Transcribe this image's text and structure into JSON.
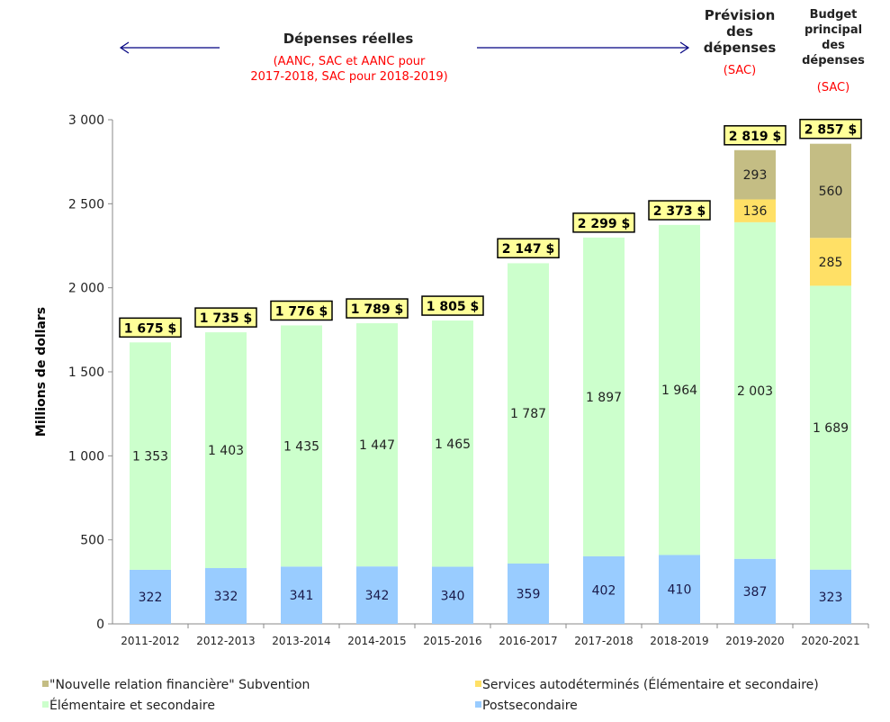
{
  "chart_data": {
    "type": "bar",
    "stacked": true,
    "ylabel": "Millions de dollars",
    "ylim": [
      0,
      3000
    ],
    "yticks": [
      0,
      500,
      1000,
      1500,
      2000,
      2500,
      3000
    ],
    "ytick_labels": [
      "0",
      "500",
      "1 000",
      "1 500",
      "2 000",
      "2 500",
      "3 000"
    ],
    "categories": [
      "2011-2012",
      "2012-2013",
      "2013-2014",
      "2014-2015",
      "2015-2016",
      "2016-2017",
      "2017-2018",
      "2018-2019",
      "2019-2020",
      "2020-2021"
    ],
    "series": [
      {
        "name": "Postsecondaire",
        "color": "#99ccff",
        "values": [
          322,
          332,
          341,
          342,
          340,
          359,
          402,
          410,
          387,
          323
        ],
        "labels": [
          "322",
          "332",
          "341",
          "342",
          "340",
          "359",
          "402",
          "410",
          "387",
          "323"
        ]
      },
      {
        "name": "Élémentaire et secondaire",
        "color": "#ccffcc",
        "values": [
          1353,
          1403,
          1435,
          1447,
          1465,
          1787,
          1897,
          1964,
          2003,
          1689
        ],
        "labels": [
          "1 353",
          "1 403",
          "1 435",
          "1 447",
          "1 465",
          "1 787",
          "1 897",
          "1 964",
          "2 003",
          "1 689"
        ]
      },
      {
        "name": "Services autodéterminés (Élémentaire et secondaire)",
        "color": "#ffe066",
        "values": [
          0,
          0,
          0,
          0,
          0,
          0,
          0,
          0,
          136,
          285
        ],
        "labels": [
          "",
          "",
          "",
          "",
          "",
          "",
          "",
          "",
          "136",
          "285"
        ]
      },
      {
        "name": "\"Nouvelle relation financière\" Subvention",
        "color": "#c4bd84",
        "values": [
          0,
          0,
          0,
          0,
          0,
          0,
          0,
          0,
          293,
          560
        ],
        "labels": [
          "",
          "",
          "",
          "",
          "",
          "",
          "",
          "",
          "293",
          "560"
        ]
      }
    ],
    "totals": [
      1675,
      1735,
      1776,
      1789,
      1805,
      2147,
      2299,
      2373,
      2819,
      2857
    ],
    "total_labels": [
      "1 675 $",
      "1 735 $",
      "1 776 $",
      "1 789 $",
      "1 805 $",
      "2 147 $",
      "2 299 $",
      "2 373 $",
      "2 819 $",
      "2 857 $"
    ],
    "legend": [
      "\"Nouvelle relation financière\" Subvention",
      "Services autodéterminés (Élémentaire et secondaire)",
      "Élémentaire et secondaire",
      "Postsecondaire"
    ],
    "legend_placement": "bottom"
  },
  "annotations": {
    "actual_title": "Dépenses réelles",
    "actual_sub1": "(AANC, SAC et AANC pour",
    "actual_sub2": "2017-2018, SAC pour 2018-2019)",
    "forecast_lines": [
      "Prévision",
      "des",
      "dépenses"
    ],
    "forecast_sub": "(SAC)",
    "budget_lines": [
      "Budget",
      "principal",
      "des",
      "dépenses"
    ],
    "budget_sub": "(SAC)"
  },
  "colors": {
    "total_box": "#ffff99",
    "arrow": "#000080",
    "note": "#ff0000"
  }
}
